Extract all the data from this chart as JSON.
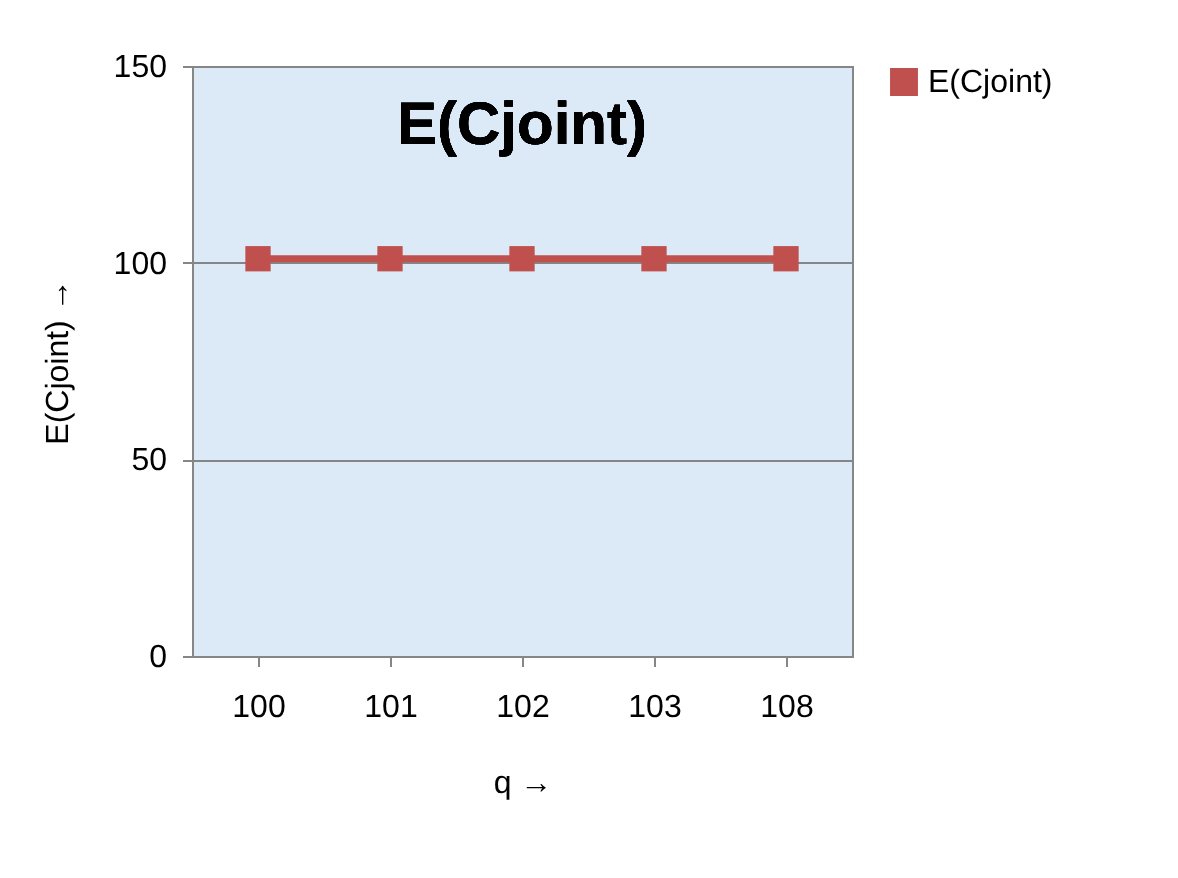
{
  "chart_data": {
    "type": "line",
    "title": "E(Cjoint)",
    "xlabel": "q →",
    "ylabel": "E(Cjoint) →",
    "categories": [
      "100",
      "101",
      "102",
      "103",
      "108"
    ],
    "series": [
      {
        "name": "E(Cjoint)",
        "color": "#c0504d",
        "values": [
          101,
          101,
          101,
          101,
          101
        ]
      }
    ],
    "ylim": [
      0,
      150
    ],
    "yticks": [
      0,
      50,
      100,
      150
    ],
    "grid": "y",
    "legend": "right",
    "marker": "square",
    "line_style": "solid"
  }
}
